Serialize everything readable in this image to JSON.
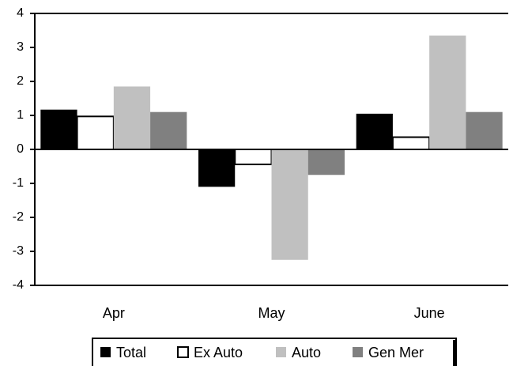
{
  "chart_data": {
    "type": "bar",
    "categories": [
      "Apr",
      "May",
      "June"
    ],
    "series": [
      {
        "name": "Total",
        "color": "#000000",
        "values": [
          1.17,
          -1.1,
          1.05
        ]
      },
      {
        "name": "Ex Auto",
        "color": "#ffffff",
        "values": [
          0.97,
          -0.44,
          0.36
        ]
      },
      {
        "name": "Auto",
        "color": "#c0c0c0",
        "values": [
          1.85,
          -3.25,
          3.35
        ]
      },
      {
        "name": "Gen Mer",
        "color": "#808080",
        "values": [
          1.1,
          -0.75,
          1.1
        ]
      }
    ],
    "ylim": [
      -4,
      4
    ],
    "yticks": [
      -4,
      -3,
      -2,
      -1,
      0,
      1,
      2,
      3,
      4
    ],
    "grid": false,
    "legend": "bottom"
  }
}
